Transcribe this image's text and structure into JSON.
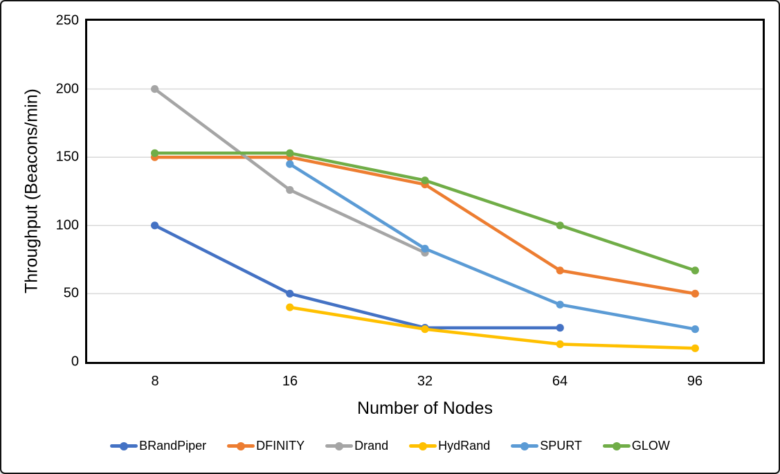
{
  "chart_data": {
    "type": "line",
    "title": "",
    "xlabel": "Number of Nodes",
    "ylabel": "Throughput (Beacons/min)",
    "x_categories": [
      "8",
      "16",
      "32",
      "64",
      "96"
    ],
    "ylim": [
      0,
      250
    ],
    "yticks": [
      0,
      50,
      100,
      150,
      200,
      250
    ],
    "grid": "horizontal",
    "gridline_color": "#d9d9d9",
    "plot_border_color": "#000000",
    "legend_position": "bottom",
    "series": [
      {
        "name": "BRandPiper",
        "color": "#4472C4",
        "values": [
          100,
          50,
          25,
          25,
          null
        ]
      },
      {
        "name": "DFINITY",
        "color": "#ED7D31",
        "values": [
          150,
          150,
          130,
          67,
          50
        ]
      },
      {
        "name": "Drand",
        "color": "#A5A5A5",
        "values": [
          200,
          126,
          80,
          null,
          null
        ]
      },
      {
        "name": "HydRand",
        "color": "#FFC000",
        "values": [
          null,
          40,
          24,
          13,
          10
        ]
      },
      {
        "name": "SPURT",
        "color": "#5B9BD5",
        "values": [
          null,
          145,
          83,
          42,
          24
        ]
      },
      {
        "name": "GLOW",
        "color": "#70AD47",
        "values": [
          153,
          153,
          133,
          100,
          67
        ]
      }
    ]
  }
}
